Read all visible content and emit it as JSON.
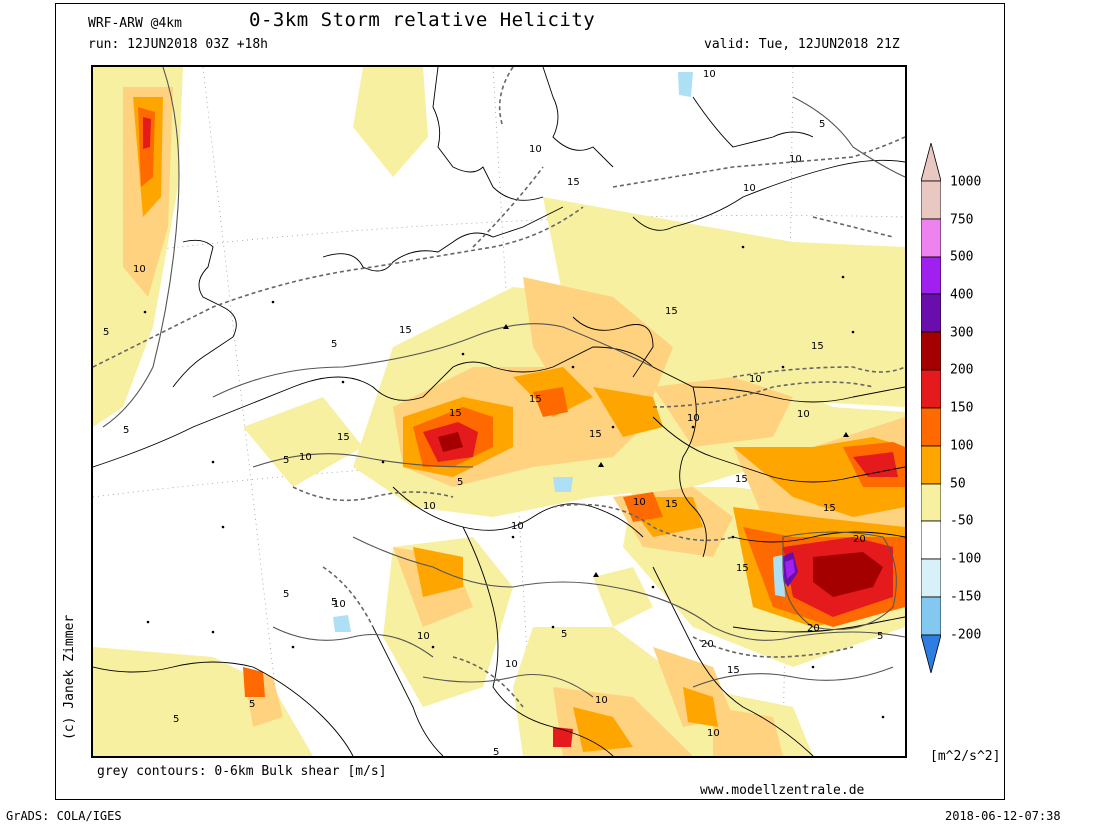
{
  "header": {
    "model": "WRF-ARW @4km",
    "title": "0-3km Storm relative Helicity",
    "run": "run: 12JUN2018 03Z +18h",
    "valid": "valid: Tue, 12JUN2018 21Z"
  },
  "map": {
    "contour_labels": [
      "5",
      "10",
      "15",
      "20"
    ]
  },
  "colorbar": {
    "units": "[m^2/s^2]",
    "labels": [
      "1000",
      "750",
      "500",
      "400",
      "300",
      "200",
      "150",
      "100",
      "50",
      "-50",
      "-100",
      "-150",
      "-200"
    ],
    "colors": {
      "c1000": "#e8c8c0",
      "c750": "#ee82ee",
      "c500": "#a020f0",
      "c400": "#6a0dad",
      "c300": "#a50000",
      "c200": "#e41a1c",
      "c150": "#ff6a00",
      "c100": "#ffa500",
      "c50": "#ffd27f",
      "c0": "#f7f0a0",
      "white": "#ffffff",
      "cm50": "#d8f0f8",
      "cm100": "#aee0f5",
      "cm150": "#82c8f0",
      "cm200": "#4aa0e8",
      "cm_tip": "#2d7ee0"
    }
  },
  "footer": {
    "legend": "grey contours: 0-6km Bulk shear [m/s]",
    "website": "www.modellzentrale.de",
    "credit": "(c) Janek Zimmer",
    "software": "GrADS: COLA/IGES",
    "timestamp": "2018-06-12-07:38"
  }
}
